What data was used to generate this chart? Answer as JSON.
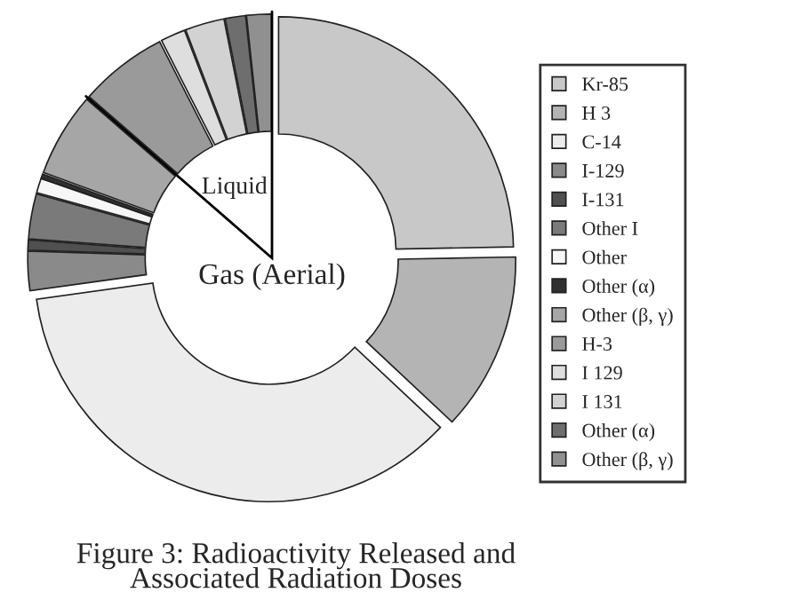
{
  "chart_data": {
    "type": "donut",
    "title": "Figure 3: Radioactivity Released and\nAssociated Radiation Doses",
    "categories": [
      "Kr-85",
      "H 3",
      "C-14",
      "I-129",
      "I-131",
      "Other I",
      "Other",
      "Other (α)",
      "Other (β, γ)",
      "H-3",
      "I 129",
      "I 131",
      "Other (α)",
      "Other (β, γ)"
    ],
    "values": [
      24.7,
      12.3,
      35.8,
      2.7,
      0.7,
      3.1,
      1.0,
      0.3,
      5.8,
      6.1,
      1.7,
      2.7,
      1.4,
      1.7
    ],
    "colors": [
      "#c8c8c8",
      "#b4b4b4",
      "#ececec",
      "#8a8a8a",
      "#505050",
      "#7a7a7a",
      "#f6f6f6",
      "#303030",
      "#a6a6a6",
      "#9a9a9a",
      "#dedede",
      "#d2d2d2",
      "#6e6e6e",
      "#909090"
    ],
    "annotations": [
      "Liquid",
      "Gas (Aerial)"
    ],
    "legend": "right"
  }
}
